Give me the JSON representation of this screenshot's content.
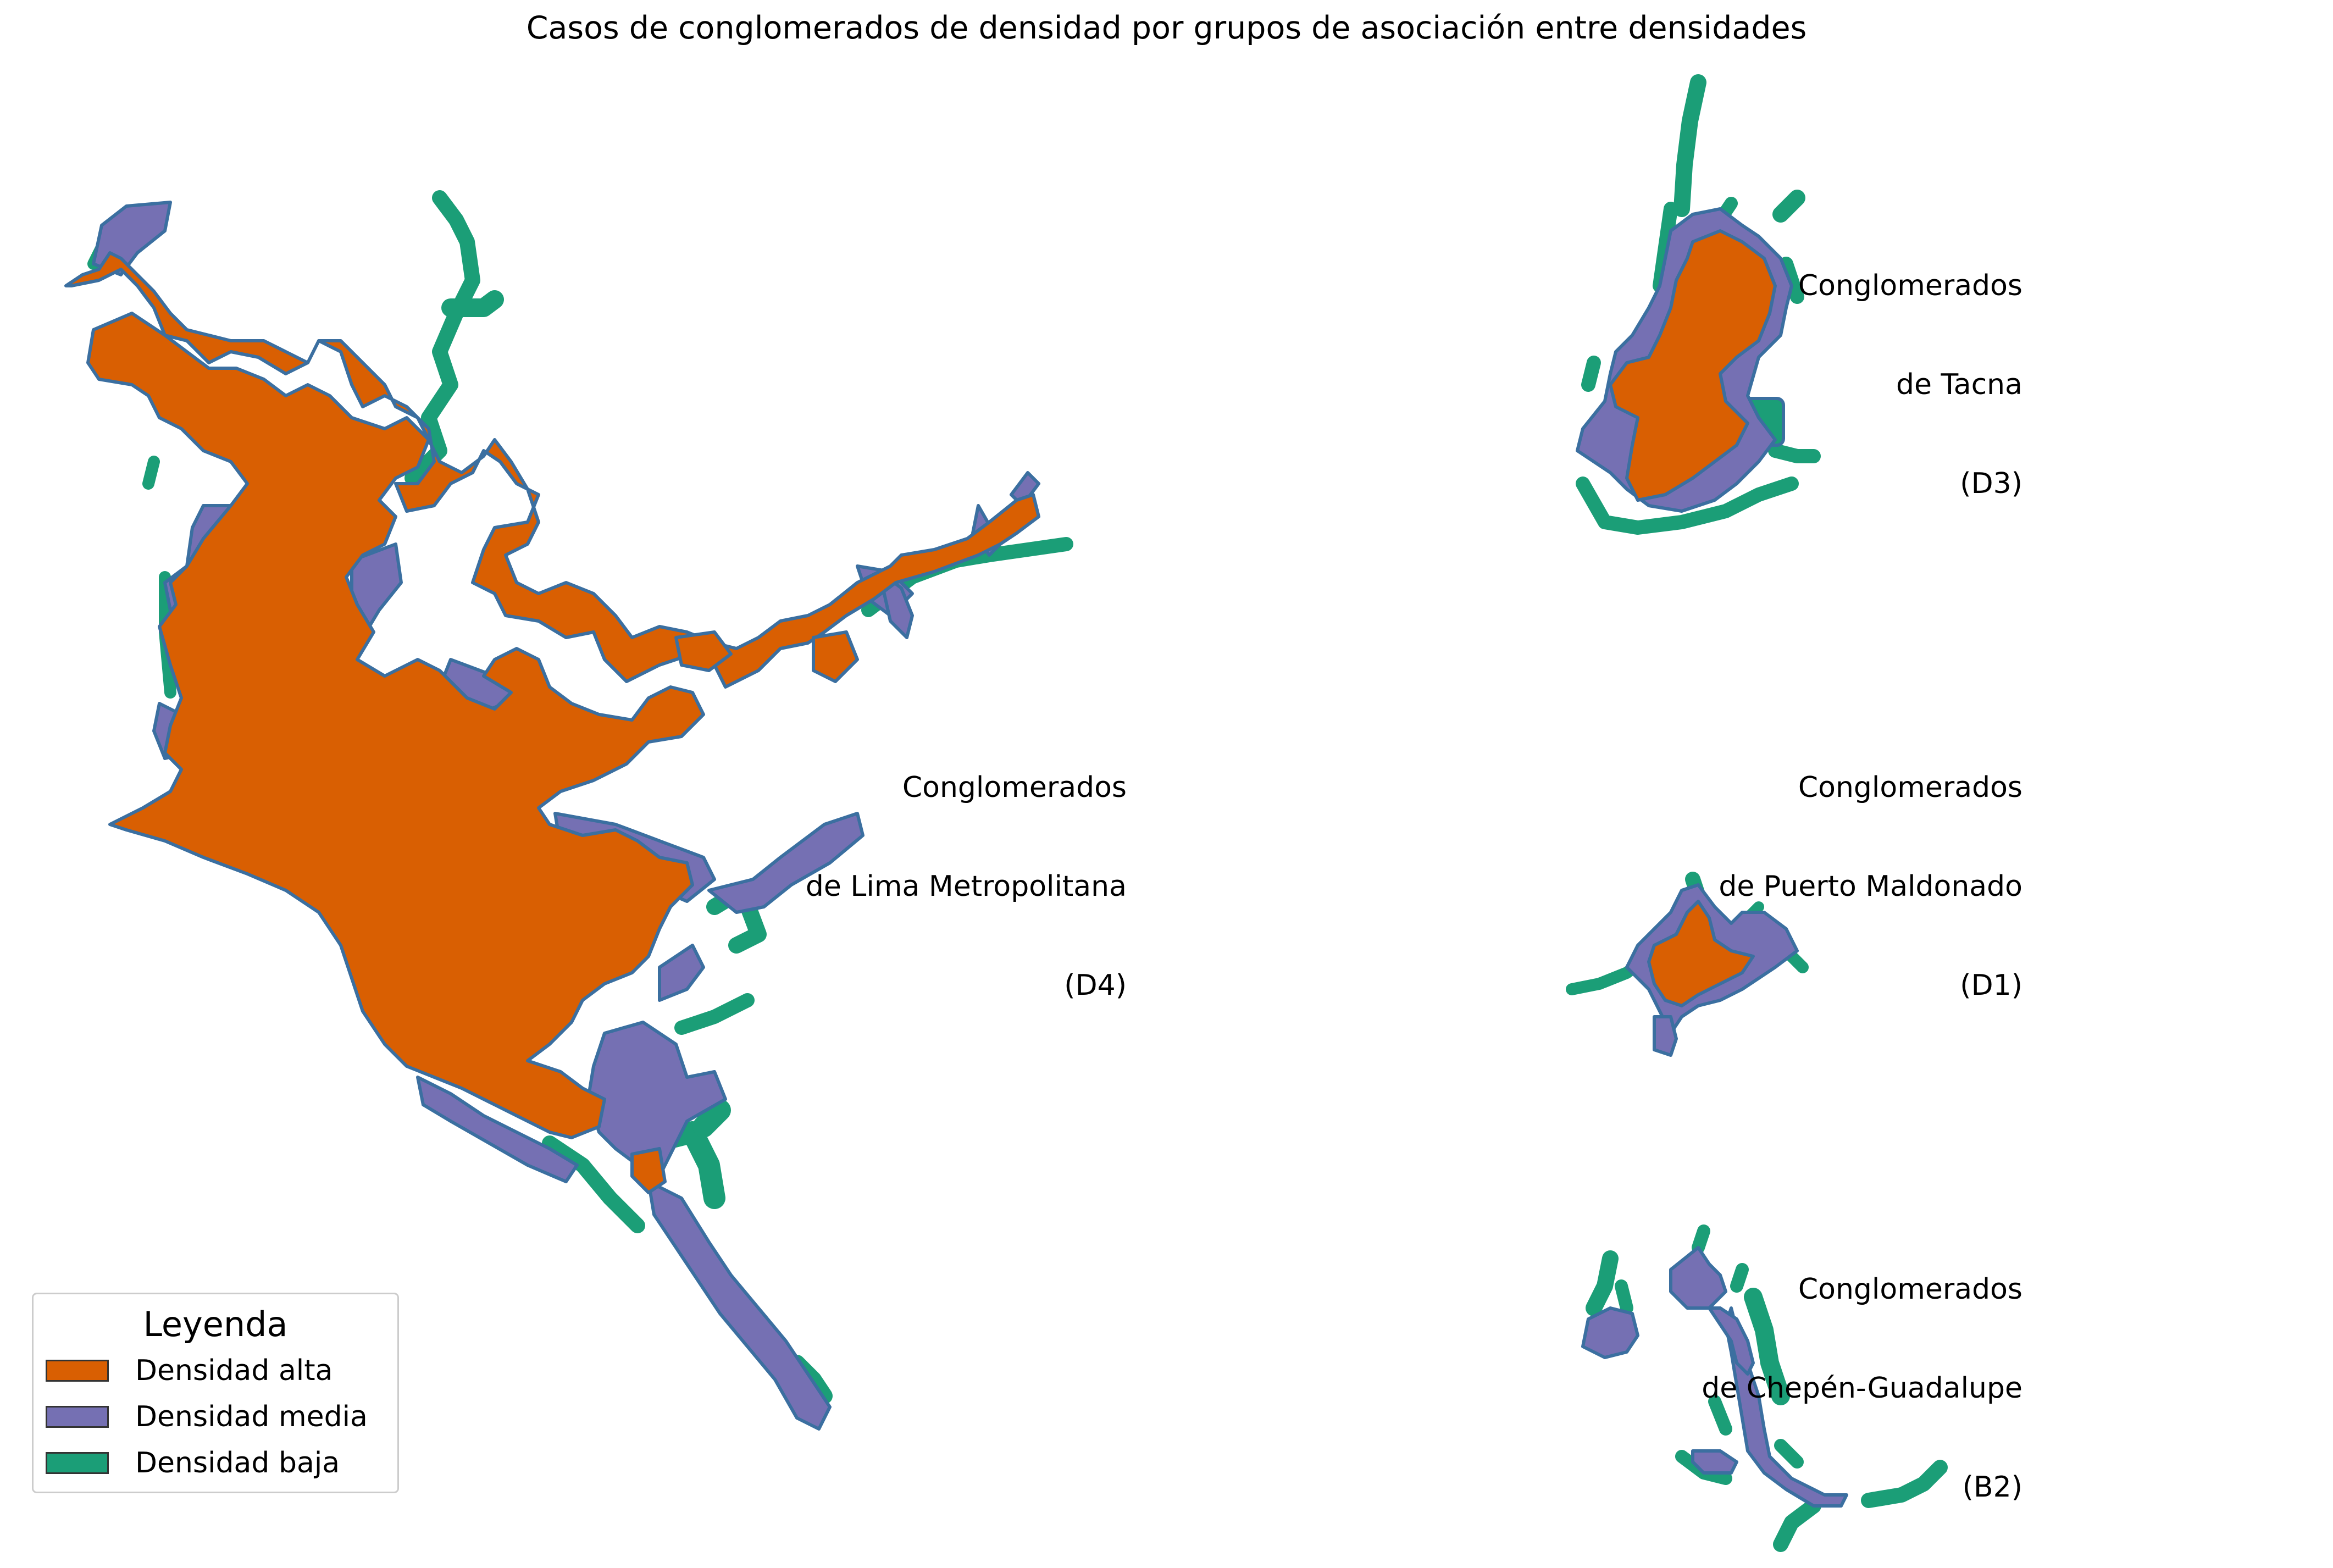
{
  "title": "Casos de conglomerados de densidad por grupos de asociación entre densidades",
  "colors": {
    "alta": "#d95f02",
    "media": "#7570b3",
    "baja": "#1b9e77",
    "edge": "#3b6fa0"
  },
  "panels": [
    {
      "id": "lima",
      "label_lines": [
        "Conglomerados",
        "de Lima Metropolitana",
        "(D4)"
      ]
    },
    {
      "id": "tacna",
      "label_lines": [
        "Conglomerados",
        "de Tacna",
        "(D3)"
      ]
    },
    {
      "id": "puerto-maldonado",
      "label_lines": [
        "Conglomerados",
        "de Puerto Maldonado",
        "(D1)"
      ]
    },
    {
      "id": "chepen",
      "label_lines": [
        "Conglomerados",
        "de Chepén-Guadalupe",
        "(B2)"
      ]
    }
  ],
  "legend": {
    "title": "Leyenda",
    "items": [
      {
        "label": "Densidad alta",
        "color": "#d95f02"
      },
      {
        "label": "Densidad media",
        "color": "#7570b3"
      },
      {
        "label": "Densidad baja",
        "color": "#1b9e77"
      }
    ]
  }
}
